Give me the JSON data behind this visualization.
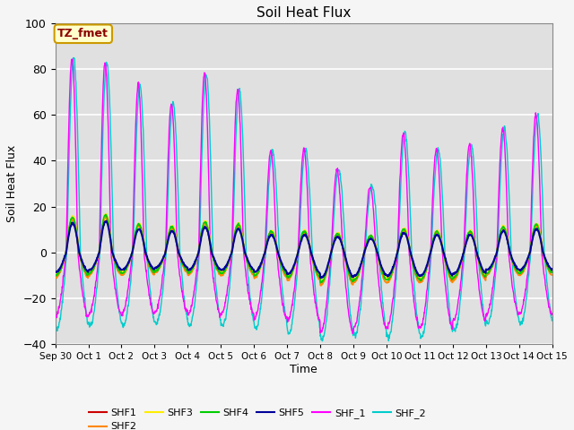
{
  "title": "Soil Heat Flux",
  "xlabel": "Time",
  "ylabel": "Soil Heat Flux",
  "ylim": [
    -40,
    100
  ],
  "yticks": [
    -40,
    -20,
    0,
    20,
    40,
    60,
    80,
    100
  ],
  "x_tick_labels": [
    "Sep 30",
    "Oct 1",
    "Oct 2",
    "Oct 3",
    "Oct 4",
    "Oct 5",
    "Oct 6",
    "Oct 7",
    "Oct 8",
    "Oct 9",
    "Oct 10",
    "Oct 11",
    "Oct 12",
    "Oct 13",
    "Oct 14",
    "Oct 15"
  ],
  "annotation_text": "TZ_fmet",
  "annotation_bg": "#ffffcc",
  "annotation_border": "#cc9900",
  "series_colors": {
    "SHF1": "#cc0000",
    "SHF2": "#ff8800",
    "SHF3": "#ffee00",
    "SHF4": "#00cc00",
    "SHF5": "#000099",
    "SHF_1": "#ff00ff",
    "SHF_2": "#00cccc"
  },
  "background_color": "#e0e0e0",
  "grid_color": "#ffffff",
  "num_days": 15,
  "points_per_day": 96,
  "large_peaks": [
    85,
    83,
    73,
    65,
    78,
    71,
    44,
    45,
    36,
    29,
    52,
    45,
    47,
    54,
    60
  ],
  "large_negs_1": [
    -28,
    -27,
    -27,
    -26,
    -27,
    -27,
    -29,
    -30,
    -35,
    -33,
    -33,
    -33,
    -30,
    -27,
    -27
  ],
  "large_negs_2": [
    -33,
    -32,
    -32,
    -31,
    -32,
    -32,
    -33,
    -35,
    -38,
    -36,
    -37,
    -37,
    -34,
    -31,
    -31
  ],
  "small_peaks": [
    15,
    16,
    12,
    11,
    13,
    12,
    9,
    9,
    8,
    7,
    10,
    9,
    9,
    11,
    12
  ],
  "small_negs": [
    -10,
    -9,
    -9,
    -8,
    -9,
    -9,
    -10,
    -11,
    -13,
    -12,
    -12,
    -12,
    -11,
    -9,
    -9
  ]
}
